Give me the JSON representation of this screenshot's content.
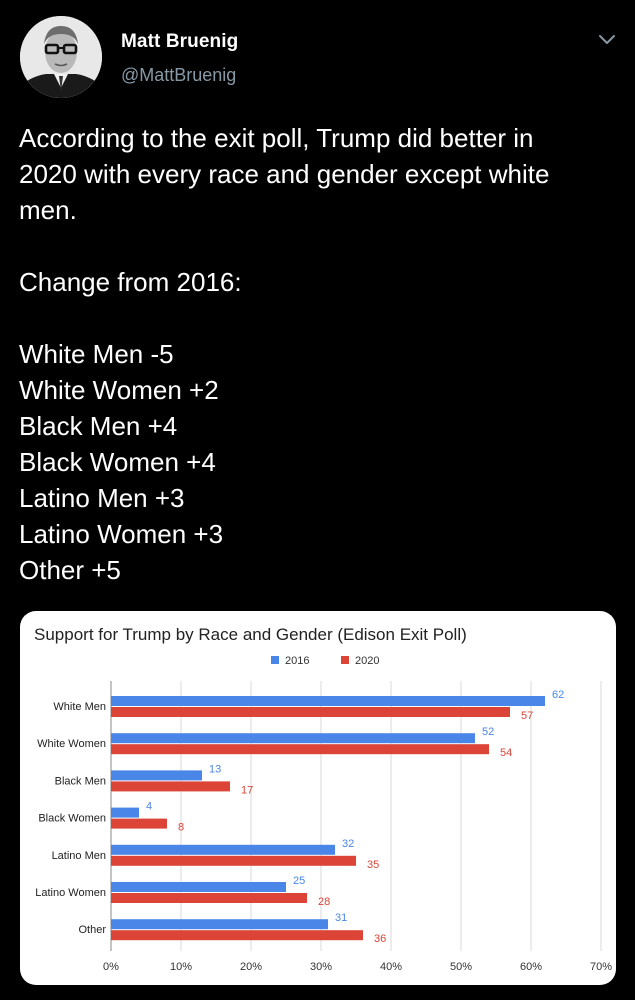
{
  "author": {
    "display_name": "Matt Bruenig",
    "handle": "@MattBruenig"
  },
  "tweet": {
    "lines": [
      "According to the exit poll, Trump did better in",
      "2020 with every race and gender except white",
      "men.",
      "",
      "Change from 2016:",
      "",
      "White Men -5",
      "White Women +2",
      "Black Men +4",
      "Black Women +4",
      "Latino Men +3",
      "Latino Women +3",
      "Other +5"
    ]
  },
  "icons": {
    "menu": "chevron-down-icon",
    "avatar": "avatar-photo"
  },
  "colors": {
    "background": "#000000",
    "text": "#ffffff",
    "secondary_text": "#8899a6",
    "series_2016": "#4a86e8",
    "series_2020": "#db4437"
  },
  "chart_data": {
    "type": "bar",
    "orientation": "horizontal",
    "title": "Support for Trump by Race and Gender (Edison Exit Poll)",
    "categories": [
      "White Men",
      "White Women",
      "Black Men",
      "Black Women",
      "Latino Men",
      "Latino Women",
      "Other"
    ],
    "series": [
      {
        "name": "2016",
        "values": [
          62,
          52,
          13,
          4,
          32,
          25,
          31
        ],
        "color": "#4a86e8"
      },
      {
        "name": "2020",
        "values": [
          57,
          54,
          17,
          8,
          35,
          28,
          36
        ],
        "color": "#db4437"
      }
    ],
    "xlim": [
      0,
      70
    ],
    "xticks": [
      "0%",
      "10%",
      "20%",
      "30%",
      "40%",
      "50%",
      "60%",
      "70%"
    ],
    "grid": true,
    "legend": "top-center"
  }
}
